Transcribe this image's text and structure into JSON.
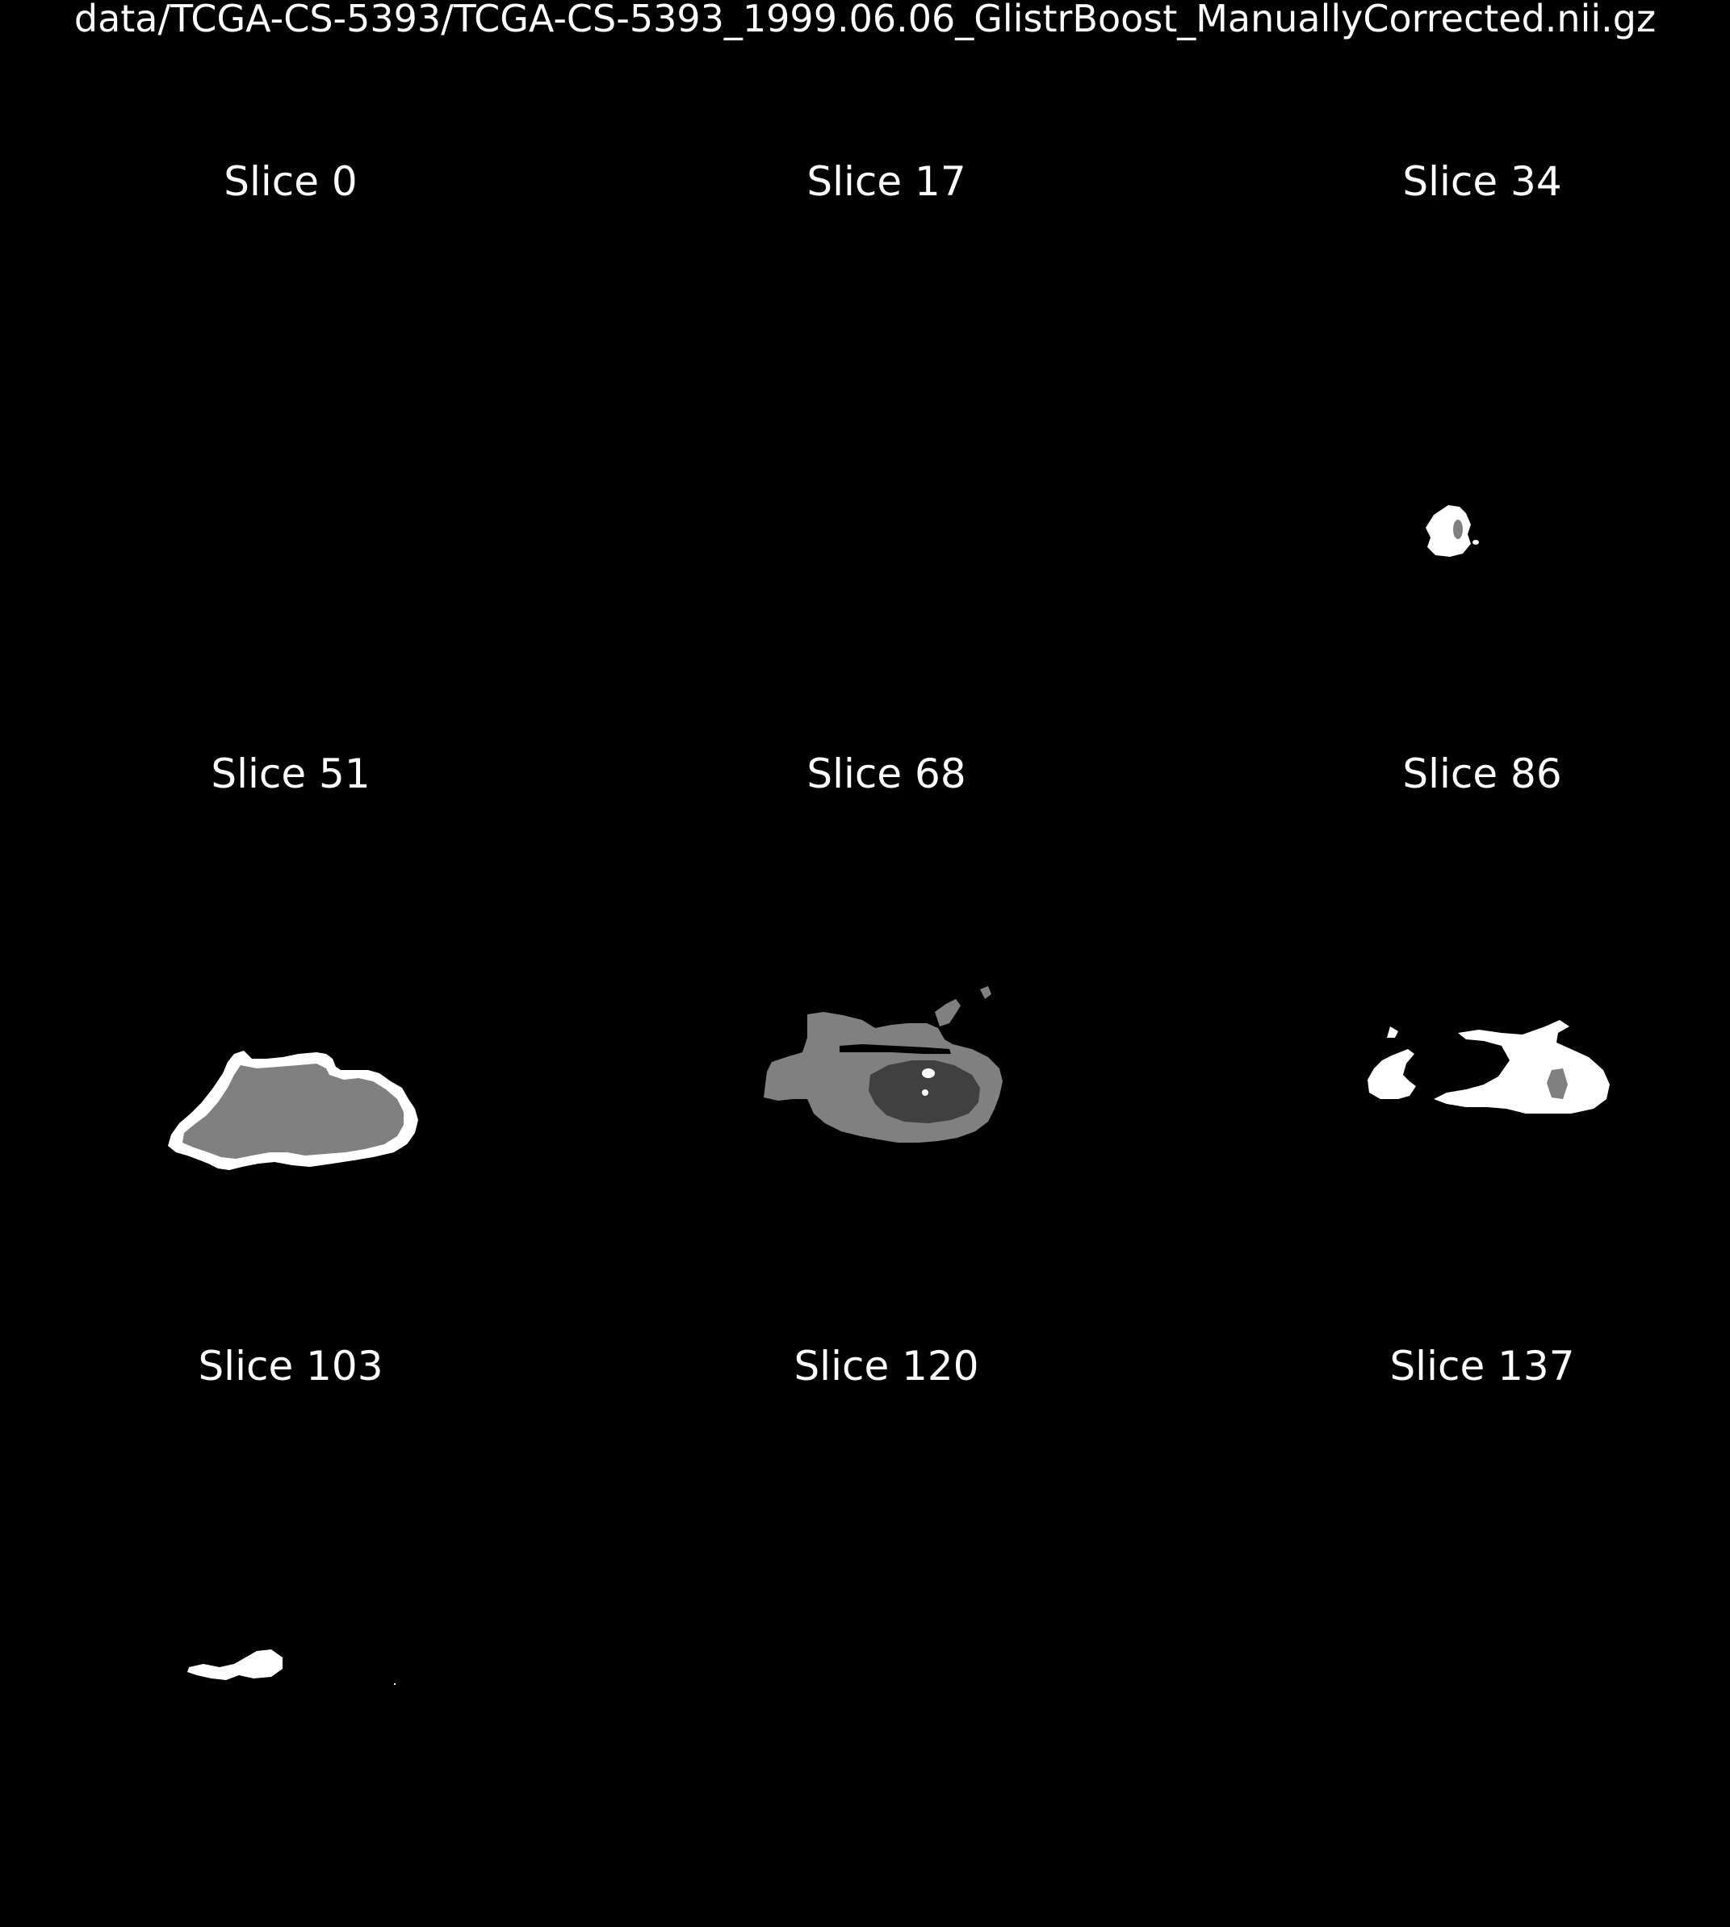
{
  "figure": {
    "title": "data/TCGA-CS-5393/TCGA-CS-5393_1999.06.06_GlistrBoost_ManuallyCorrected.nii.gz"
  },
  "colors": {
    "background": "#000000",
    "label_high": "#ffffff",
    "label_mid": "#808080",
    "label_low": "#404040"
  },
  "slices": [
    {
      "title": "Slice 0"
    },
    {
      "title": "Slice 17"
    },
    {
      "title": "Slice 34"
    },
    {
      "title": "Slice 51"
    },
    {
      "title": "Slice 68"
    },
    {
      "title": "Slice 86"
    },
    {
      "title": "Slice 103"
    },
    {
      "title": "Slice 120"
    },
    {
      "title": "Slice 137"
    }
  ]
}
